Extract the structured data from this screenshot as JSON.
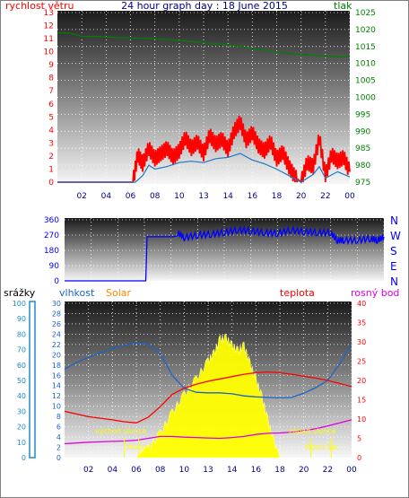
{
  "colors": {
    "wind": "#ff0000",
    "gust_line": "#1e78c8",
    "pressure": "#008000",
    "direction": "#0000ff",
    "humidity": "#1e64c8",
    "temperature": "#ff0000",
    "dewpoint": "#e000e0",
    "solar": "#ffff00",
    "solar_label": "#ff8800",
    "rain": "#1e8cc8",
    "title": "#000080",
    "x_ticks": "#000080"
  },
  "header": {
    "left_label": "rychlost větru",
    "title": "24 hour graph day : 18 June 2015",
    "right_label": "tlak"
  },
  "x_ticks": [
    "02",
    "04",
    "06",
    "08",
    "10",
    "13",
    "14",
    "16",
    "18",
    "20",
    "22",
    "00"
  ],
  "chart_data": [
    {
      "type": "line",
      "name": "wind-pressure",
      "ylabel_left": "rychlost větru",
      "ylabel_right": "tlak",
      "ylim_left": [
        0,
        13
      ],
      "ylim_right": [
        975,
        1025
      ],
      "y_ticks_left": [
        "0",
        "1",
        "2",
        "3",
        "4",
        "5",
        "6",
        "7",
        "8",
        "9",
        "10",
        "11",
        "12",
        "13"
      ],
      "y_ticks_right": [
        "975",
        "980",
        "985",
        "990",
        "995",
        "1000",
        "1005",
        "1010",
        "1015",
        "1020",
        "1025"
      ],
      "x_range_hours": [
        0,
        24
      ],
      "series": [
        {
          "name": "tlak",
          "x": [
            0,
            1,
            2,
            3,
            4,
            5,
            6,
            7,
            8,
            9,
            10,
            11,
            12,
            13,
            14,
            15,
            16,
            17,
            18,
            19,
            20,
            21,
            22,
            23,
            24
          ],
          "values": [
            1019,
            1019,
            1018,
            1018,
            1017.8,
            1017.6,
            1017.5,
            1017.4,
            1017.3,
            1017.1,
            1016.8,
            1016.5,
            1016.1,
            1015.8,
            1015.5,
            1015,
            1014.4,
            1013.8,
            1013.3,
            1012.9,
            1012.6,
            1012.4,
            1012.2,
            1012,
            1012
          ]
        },
        {
          "name": "wind-gust",
          "x": [
            0,
            6.2,
            6.6,
            7,
            7.5,
            8,
            8.5,
            9,
            9.5,
            10,
            10.5,
            11,
            11.5,
            12,
            12.5,
            13,
            13.5,
            14,
            14.5,
            15,
            15.5,
            16,
            16.5,
            17,
            17.5,
            18,
            18.5,
            19,
            19.5,
            20,
            20.5,
            21,
            21.5,
            22,
            22.5,
            23,
            23.5,
            24
          ],
          "values": [
            0,
            0,
            2.1,
            1.4,
            2.6,
            1.8,
            2.2,
            2.6,
            1.9,
            2.4,
            3.4,
            2.6,
            3.1,
            2.2,
            3.6,
            2.9,
            3.3,
            2.5,
            3.9,
            4.6,
            3.2,
            3.8,
            2.8,
            2.4,
            3.1,
            1.8,
            2.3,
            1.2,
            0.4,
            0,
            1.5,
            1.2,
            3.4,
            0.5,
            2.1,
            1.6,
            1.9,
            0.8
          ]
        },
        {
          "name": "wind-avg",
          "x": [
            0,
            6.4,
            7,
            7.5,
            8,
            9,
            10,
            11,
            12,
            13,
            14,
            15,
            16,
            17,
            18,
            19,
            20,
            21,
            21.5,
            22,
            23,
            24
          ],
          "values": [
            0,
            0,
            0.5,
            1.3,
            1.0,
            1.2,
            1.5,
            1.6,
            1.5,
            1.8,
            1.9,
            2.2,
            1.7,
            1.4,
            1.0,
            0.5,
            0,
            0.6,
            1.2,
            0.3,
            0.8,
            0.4
          ]
        }
      ]
    },
    {
      "type": "line",
      "name": "wind-direction",
      "ylim": [
        0,
        360
      ],
      "y_ticks": [
        "0",
        "90",
        "180",
        "270",
        "360"
      ],
      "y_ticks_right": [
        "N",
        "W",
        "S",
        "E",
        "N"
      ],
      "x_range_hours": [
        0,
        24
      ],
      "series": [
        {
          "name": "direction",
          "x": [
            0,
            6.1,
            6.2,
            8.2,
            8.5,
            9,
            10,
            11,
            12,
            13,
            14,
            15,
            16,
            17,
            18,
            19,
            20,
            20.5,
            21,
            22,
            23,
            23.5,
            24
          ],
          "values": [
            0,
            0,
            260,
            260,
            285,
            255,
            270,
            275,
            285,
            300,
            295,
            285,
            280,
            300,
            290,
            285,
            285,
            240,
            240,
            240,
            250,
            240,
            260
          ]
        }
      ]
    },
    {
      "type": "line",
      "name": "humidity-temp-solar",
      "labels": {
        "rain": "srážky",
        "humidity": "vlhkost",
        "solar": "Solar",
        "temperature": "teplota",
        "dewpoint": "rosný bod"
      },
      "ylim_rain": [
        0,
        100
      ],
      "ylim_humidity": [
        0,
        30
      ],
      "ylim_temp": [
        0,
        40
      ],
      "y_ticks_rain": [
        "0",
        "10",
        "20",
        "30",
        "40",
        "50",
        "60",
        "70",
        "80",
        "90",
        "100"
      ],
      "y_ticks_humidity": [
        "0",
        "2",
        "4",
        "6",
        "8",
        "10",
        "12",
        "14",
        "16",
        "18",
        "20",
        "22",
        "24",
        "26",
        "28",
        "30"
      ],
      "y_ticks_temp": [
        "0",
        "5",
        "10",
        "15",
        "20",
        "25",
        "30",
        "35",
        "40"
      ],
      "annotations": [
        "východ slunce",
        "Moon Rise",
        "západ slunce",
        "Moon Set"
      ],
      "x_range_hours": [
        0,
        24
      ],
      "series": [
        {
          "name": "vlhkost",
          "x": [
            0,
            1,
            2,
            3,
            4,
            5,
            6,
            7,
            8,
            9,
            10,
            11,
            12,
            13,
            14,
            15,
            16,
            17,
            18,
            19,
            20,
            21,
            22,
            23,
            24
          ],
          "values": [
            17.2,
            18.5,
            19.5,
            20.4,
            21.2,
            21.8,
            22.3,
            22.0,
            20.2,
            16.0,
            13.5,
            12.7,
            12.6,
            12.6,
            12.4,
            12.0,
            11.8,
            11.7,
            11.6,
            11.7,
            12.5,
            13.6,
            15.0,
            18.2,
            22.2
          ]
        },
        {
          "name": "teplota",
          "x": [
            0,
            1,
            2,
            3,
            4,
            5,
            6,
            7,
            8,
            9,
            10,
            11,
            12,
            13,
            14,
            15,
            16,
            17,
            18,
            19,
            20,
            21,
            22,
            23,
            24
          ],
          "values": [
            12,
            11.3,
            10.6,
            10.2,
            9.8,
            9.3,
            9.0,
            10.5,
            13.2,
            16.4,
            18.0,
            19.0,
            19.8,
            20.4,
            21.0,
            21.6,
            22.0,
            22.2,
            22.0,
            21.6,
            21.1,
            20.6,
            20.0,
            19.2,
            18.4
          ]
        },
        {
          "name": "rosný bod",
          "x": [
            0,
            1,
            2,
            3,
            4,
            5,
            6,
            7,
            8,
            9,
            10,
            11,
            12,
            13,
            14,
            15,
            16,
            17,
            18,
            19,
            20,
            21,
            22,
            23,
            24
          ],
          "values": [
            3.6,
            3.8,
            4.0,
            4.1,
            4.2,
            4.3,
            4.5,
            5.0,
            5.5,
            5.5,
            5.3,
            5.2,
            5.1,
            5.0,
            5.2,
            5.5,
            6.0,
            6.3,
            6.4,
            6.6,
            7.0,
            7.5,
            8.2,
            9.0,
            9.8
          ]
        },
        {
          "name": "Solar",
          "x": [
            6,
            7,
            8,
            9,
            10,
            11,
            12,
            12.5,
            13,
            13.5,
            14,
            14.5,
            15,
            15.5,
            16,
            16.5,
            17,
            17.5,
            18
          ],
          "values": [
            0,
            2.5,
            5.5,
            9.5,
            13.0,
            16.0,
            19.5,
            21.0,
            23.8,
            24.0,
            22.5,
            21.5,
            22.5,
            19.0,
            16.0,
            12.5,
            8.0,
            4.0,
            0
          ]
        }
      ]
    }
  ]
}
